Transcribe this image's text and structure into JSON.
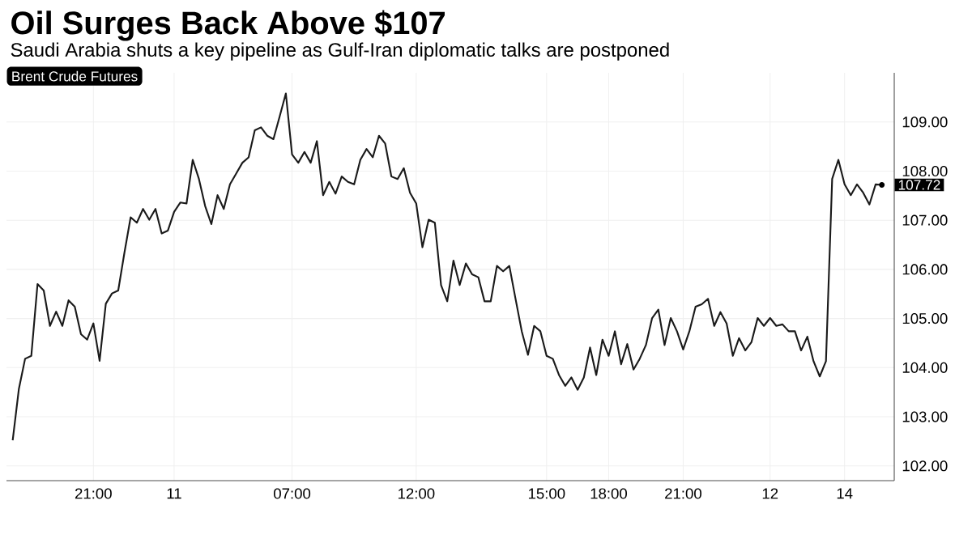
{
  "chart_data": {
    "type": "line",
    "title": "Oil Surges Back Above $107",
    "subtitle": "Saudi Arabia shuts a key pipeline as Gulf-Iran diplomatic talks are postponed",
    "categories": [
      null,
      null,
      null,
      null,
      null,
      null,
      null,
      null,
      null,
      null,
      null,
      null,
      null,
      "21:00",
      null,
      null,
      null,
      null,
      null,
      null,
      null,
      null,
      null,
      null,
      null,
      null,
      "11",
      null,
      null,
      null,
      null,
      null,
      null,
      null,
      null,
      null,
      null,
      null,
      null,
      null,
      null,
      null,
      null,
      null,
      null,
      "07:00",
      null,
      null,
      null,
      null,
      null,
      null,
      null,
      null,
      null,
      null,
      null,
      null,
      null,
      null,
      null,
      null,
      null,
      null,
      null,
      "12:00",
      null,
      null,
      null,
      null,
      null,
      null,
      null,
      null,
      null,
      null,
      null,
      null,
      null,
      null,
      null,
      null,
      null,
      null,
      null,
      null,
      "15:00",
      null,
      null,
      null,
      null,
      null,
      null,
      null,
      null,
      null,
      "18:00",
      null,
      null,
      null,
      null,
      null,
      null,
      null,
      null,
      null,
      null,
      null,
      "21:00",
      null,
      null,
      null,
      null,
      null,
      null,
      null,
      null,
      null,
      null,
      null,
      null,
      null,
      "12",
      null,
      null,
      null,
      null,
      null,
      null,
      null,
      null,
      null,
      null,
      null,
      "14",
      null,
      null,
      null,
      null,
      null,
      null
    ],
    "series": [
      {
        "color": "#1a1a1a",
        "values": [
          102.52,
          103.57,
          104.18,
          104.24,
          105.7,
          105.57,
          104.85,
          105.14,
          104.85,
          105.37,
          105.24,
          104.68,
          104.57,
          104.9,
          104.14,
          105.3,
          105.51,
          105.57,
          106.34,
          107.06,
          106.95,
          107.23,
          107.01,
          107.23,
          106.73,
          106.79,
          107.17,
          107.36,
          107.34,
          108.23,
          107.84,
          107.29,
          106.92,
          107.51,
          107.23,
          107.73,
          107.95,
          108.17,
          108.28,
          108.83,
          108.89,
          108.72,
          108.65,
          109.11,
          109.58,
          108.34,
          108.17,
          108.39,
          108.17,
          108.61,
          107.51,
          107.78,
          107.54,
          107.89,
          107.78,
          107.73,
          108.23,
          108.45,
          108.28,
          108.72,
          108.56,
          107.89,
          107.84,
          108.06,
          107.56,
          107.34,
          106.45,
          107.01,
          106.95,
          105.68,
          105.35,
          106.18,
          105.68,
          106.12,
          105.9,
          105.84,
          105.35,
          105.35,
          106.07,
          105.96,
          106.07,
          105.4,
          104.74,
          104.26,
          104.85,
          104.74,
          104.24,
          104.18,
          103.85,
          103.63,
          103.8,
          103.55,
          103.8,
          104.41,
          103.85,
          104.57,
          104.24,
          104.74,
          104.07,
          104.48,
          103.96,
          104.18,
          104.46,
          105.01,
          105.18,
          104.46,
          105.01,
          104.74,
          104.37,
          104.74,
          105.24,
          105.29,
          105.4,
          104.85,
          105.13,
          104.9,
          104.24,
          104.6,
          104.35,
          104.52,
          105.01,
          104.85,
          105.01,
          104.85,
          104.88,
          104.74,
          104.74,
          104.35,
          104.63,
          104.13,
          103.82,
          104.13,
          107.84,
          108.23,
          107.73,
          107.51,
          107.73,
          107.56,
          107.32,
          107.73,
          107.72
        ]
      }
    ],
    "ylim": [
      101.7,
      110.0
    ],
    "yticks": [
      {
        "value": 102,
        "label": "102.00"
      },
      {
        "value": 103,
        "label": "103.00"
      },
      {
        "value": 104,
        "label": "104.00"
      },
      {
        "value": 105,
        "label": "105.00"
      },
      {
        "value": 106,
        "label": "106.00"
      },
      {
        "value": 107,
        "label": "107.00"
      },
      {
        "value": 108,
        "label": "108.00"
      },
      {
        "value": 109,
        "label": "109.00"
      }
    ],
    "grid": true,
    "annotations": [
      "Brent Crude Futures",
      "107.72"
    ]
  }
}
